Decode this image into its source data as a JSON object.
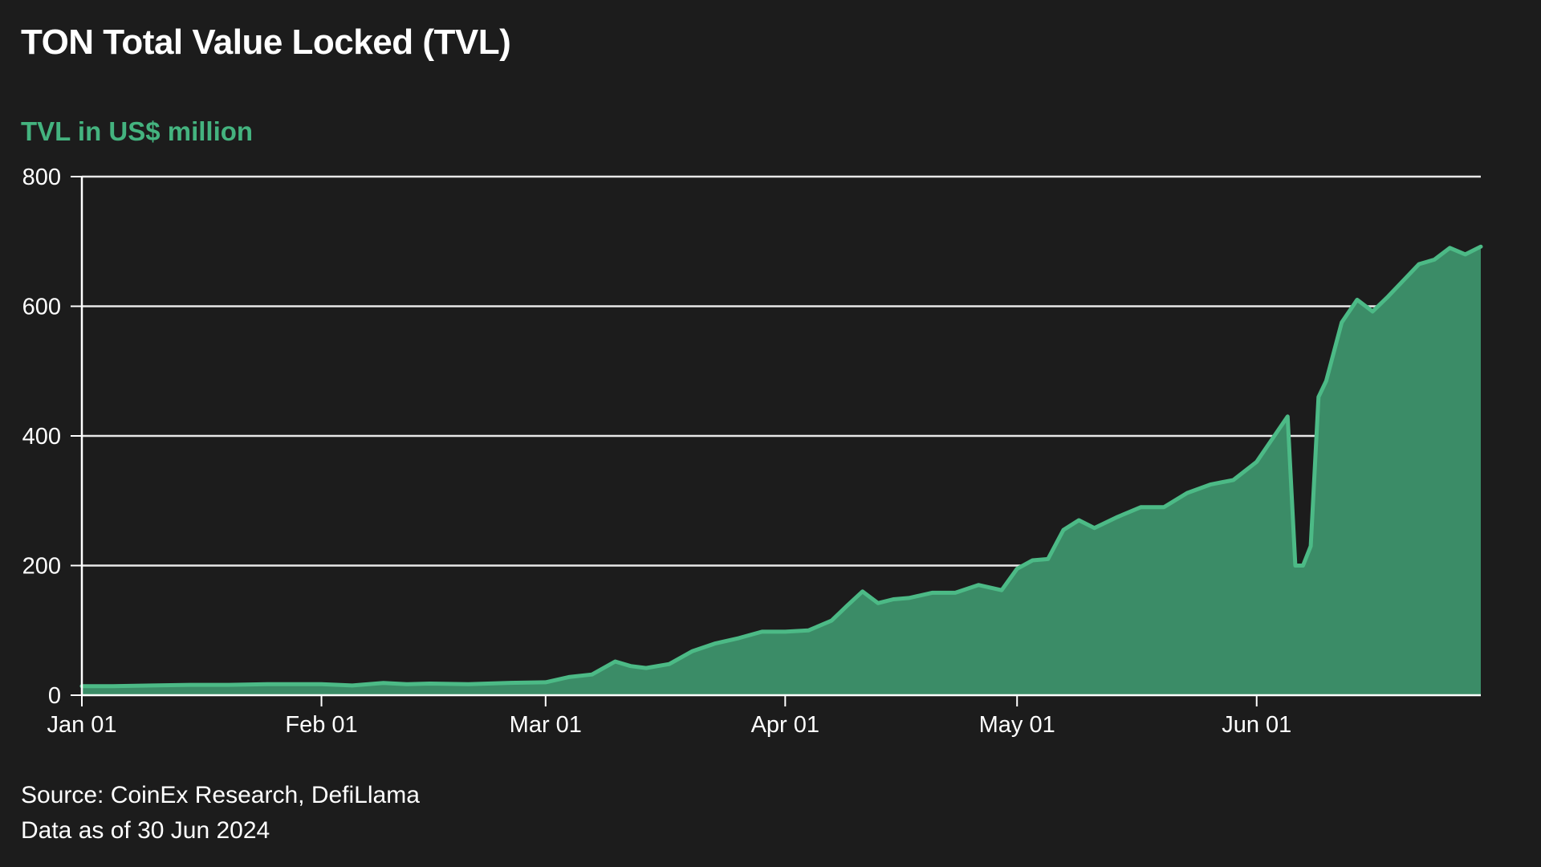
{
  "chart_data": {
    "type": "area",
    "title": "TON Total Value Locked (TVL)",
    "subtitle": "TVL in US$ million",
    "xlabel": "",
    "ylabel": "",
    "ylim": [
      0,
      800
    ],
    "xlim": [
      "2024-01-01",
      "2024-06-30"
    ],
    "yticks": [
      0,
      200,
      400,
      600,
      800
    ],
    "xticks": [
      {
        "date": "2024-01-01",
        "label": "Jan 01"
      },
      {
        "date": "2024-02-01",
        "label": "Feb 01"
      },
      {
        "date": "2024-03-01",
        "label": "Mar 01"
      },
      {
        "date": "2024-04-01",
        "label": "Apr 01"
      },
      {
        "date": "2024-05-01",
        "label": "May 01"
      },
      {
        "date": "2024-06-01",
        "label": "Jun 01"
      }
    ],
    "grid": true,
    "colors": {
      "line": "#4cba86",
      "fill": "#3b8c67",
      "grid": "#e8e8e8",
      "subtitle": "#44b37f"
    },
    "x": [
      "2024-01-01",
      "2024-01-05",
      "2024-01-10",
      "2024-01-15",
      "2024-01-20",
      "2024-01-25",
      "2024-02-01",
      "2024-02-05",
      "2024-02-09",
      "2024-02-12",
      "2024-02-15",
      "2024-02-20",
      "2024-02-25",
      "2024-03-01",
      "2024-03-04",
      "2024-03-07",
      "2024-03-10",
      "2024-03-12",
      "2024-03-14",
      "2024-03-17",
      "2024-03-20",
      "2024-03-23",
      "2024-03-26",
      "2024-03-29",
      "2024-04-01",
      "2024-04-04",
      "2024-04-07",
      "2024-04-09",
      "2024-04-11",
      "2024-04-13",
      "2024-04-15",
      "2024-04-17",
      "2024-04-20",
      "2024-04-23",
      "2024-04-26",
      "2024-04-29",
      "2024-05-01",
      "2024-05-03",
      "2024-05-05",
      "2024-05-07",
      "2024-05-09",
      "2024-05-11",
      "2024-05-14",
      "2024-05-17",
      "2024-05-20",
      "2024-05-23",
      "2024-05-26",
      "2024-05-29",
      "2024-06-01",
      "2024-06-03",
      "2024-06-05",
      "2024-06-06",
      "2024-06-07",
      "2024-06-08",
      "2024-06-09",
      "2024-06-10",
      "2024-06-12",
      "2024-06-14",
      "2024-06-16",
      "2024-06-18",
      "2024-06-20",
      "2024-06-22",
      "2024-06-24",
      "2024-06-26",
      "2024-06-28",
      "2024-06-30"
    ],
    "values": [
      14,
      14,
      15,
      16,
      16,
      17,
      17,
      15,
      19,
      17,
      18,
      17,
      19,
      20,
      28,
      32,
      52,
      45,
      42,
      48,
      68,
      80,
      88,
      98,
      98,
      100,
      115,
      138,
      160,
      142,
      148,
      150,
      158,
      158,
      170,
      162,
      195,
      208,
      210,
      255,
      270,
      258,
      275,
      290,
      290,
      312,
      325,
      332,
      360,
      395,
      430,
      200,
      200,
      230,
      460,
      485,
      575,
      610,
      592,
      615,
      640,
      665,
      672,
      690,
      680,
      692
    ]
  },
  "footer": {
    "source": "Source: CoinEx Research, DefiLlama",
    "as_of": "Data as of 30 Jun 2024"
  }
}
